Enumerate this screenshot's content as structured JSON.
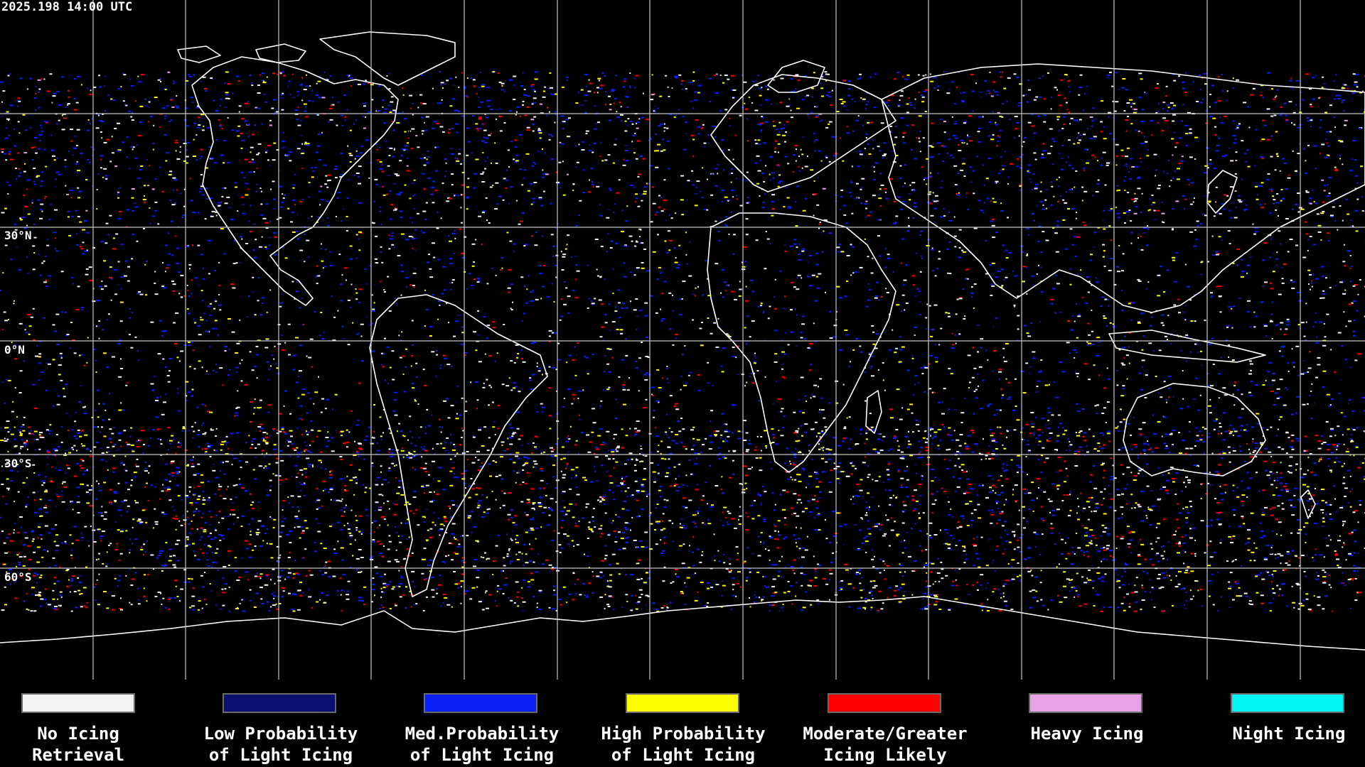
{
  "map": {
    "timestamp": "2025.198 14:00 UTC",
    "lat_labels": {
      "n30": "30°N",
      "eq": "0°N",
      "s30": "30°S",
      "s60": "60°S"
    }
  },
  "legend": {
    "items": [
      {
        "line1": "No Icing",
        "line2": "Retrieval",
        "color": "#f2f2f2"
      },
      {
        "line1": "Low Probability",
        "line2": "of Light Icing",
        "color": "#0b1070"
      },
      {
        "line1": "Med.Probability",
        "line2": "of Light Icing",
        "color": "#0a1ef5"
      },
      {
        "line1": "High Probability",
        "line2": "of Light Icing",
        "color": "#ffff00"
      },
      {
        "line1": "Moderate/Greater",
        "line2": "Icing Likely",
        "color": "#ff0000"
      },
      {
        "line1": "Heavy Icing",
        "line2": "",
        "color": "#e8a2e6"
      },
      {
        "line1": "Night Icing",
        "line2": "",
        "color": "#00f5f5"
      }
    ]
  },
  "colors": {
    "background": "#000000",
    "grid": "#c8c8c8",
    "coastline": "#ffffff"
  }
}
